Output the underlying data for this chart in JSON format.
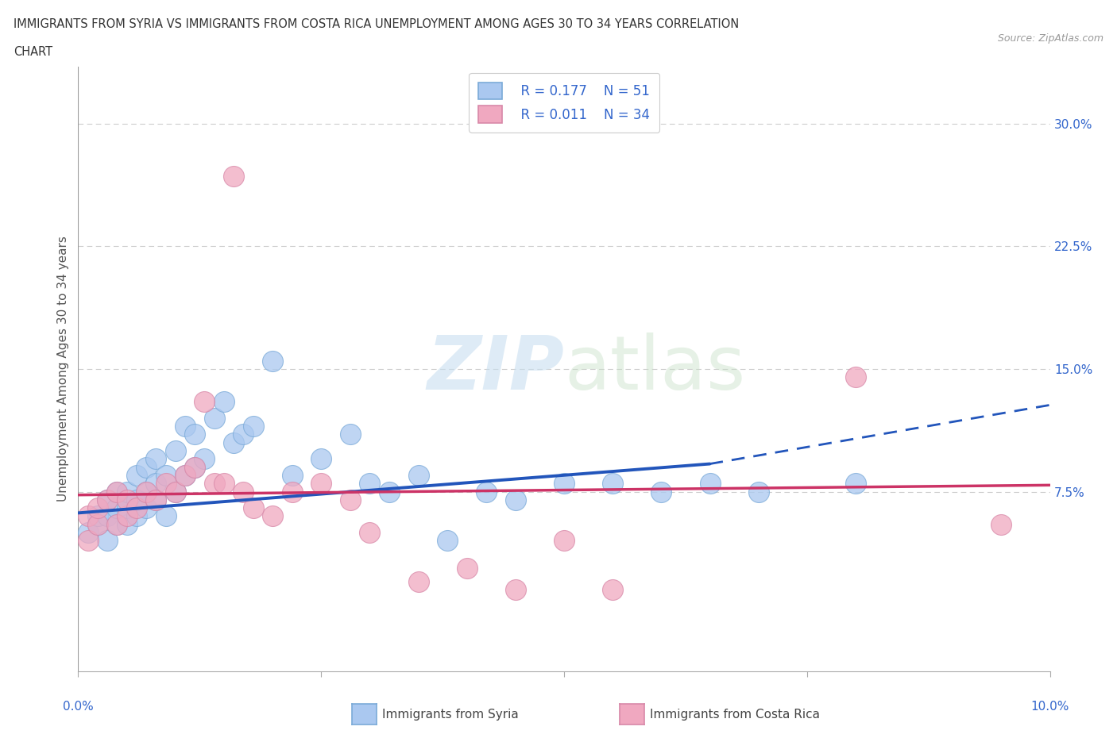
{
  "title_line1": "IMMIGRANTS FROM SYRIA VS IMMIGRANTS FROM COSTA RICA UNEMPLOYMENT AMONG AGES 30 TO 34 YEARS CORRELATION",
  "title_line2": "CHART",
  "source": "Source: ZipAtlas.com",
  "ylabel": "Unemployment Among Ages 30 to 34 years",
  "yticks_right": [
    0.075,
    0.15,
    0.225,
    0.3
  ],
  "ytick_labels_right": [
    "7.5%",
    "15.0%",
    "22.5%",
    "30.0%"
  ],
  "xlim": [
    0.0,
    0.1
  ],
  "ylim": [
    -0.035,
    0.335
  ],
  "watermark_zip": "ZIP",
  "watermark_atlas": "atlas",
  "legend_syria_R": "R = 0.177",
  "legend_syria_N": "N = 51",
  "legend_costa_R": "R = 0.011",
  "legend_costa_N": "N = 34",
  "syria_color": "#aac8f0",
  "costa_color": "#f0a8c0",
  "syria_edge": "#7aaad8",
  "costa_edge": "#d888a8",
  "trend_syria_color": "#2255bb",
  "trend_costa_color": "#cc3366",
  "background": "#ffffff",
  "grid_color": "#cccccc",
  "label_color": "#3366cc",
  "title_color": "#333333",
  "axis_color": "#aaaaaa",
  "syria_x": [
    0.001,
    0.002,
    0.002,
    0.003,
    0.003,
    0.003,
    0.004,
    0.004,
    0.004,
    0.005,
    0.005,
    0.005,
    0.006,
    0.006,
    0.006,
    0.007,
    0.007,
    0.007,
    0.008,
    0.008,
    0.008,
    0.009,
    0.009,
    0.01,
    0.01,
    0.011,
    0.011,
    0.012,
    0.012,
    0.013,
    0.014,
    0.015,
    0.016,
    0.017,
    0.018,
    0.02,
    0.022,
    0.025,
    0.028,
    0.03,
    0.032,
    0.035,
    0.038,
    0.042,
    0.045,
    0.05,
    0.055,
    0.06,
    0.065,
    0.07,
    0.08
  ],
  "syria_y": [
    0.05,
    0.055,
    0.06,
    0.045,
    0.06,
    0.07,
    0.055,
    0.065,
    0.075,
    0.055,
    0.065,
    0.075,
    0.06,
    0.07,
    0.085,
    0.065,
    0.075,
    0.09,
    0.07,
    0.08,
    0.095,
    0.06,
    0.085,
    0.075,
    0.1,
    0.085,
    0.115,
    0.09,
    0.11,
    0.095,
    0.12,
    0.13,
    0.105,
    0.11,
    0.115,
    0.155,
    0.085,
    0.095,
    0.11,
    0.08,
    0.075,
    0.085,
    0.045,
    0.075,
    0.07,
    0.08,
    0.08,
    0.075,
    0.08,
    0.075,
    0.08
  ],
  "costa_x": [
    0.001,
    0.001,
    0.002,
    0.002,
    0.003,
    0.004,
    0.004,
    0.005,
    0.005,
    0.006,
    0.007,
    0.008,
    0.009,
    0.01,
    0.011,
    0.012,
    0.013,
    0.014,
    0.015,
    0.016,
    0.017,
    0.018,
    0.02,
    0.022,
    0.025,
    0.028,
    0.03,
    0.035,
    0.04,
    0.045,
    0.05,
    0.055,
    0.08,
    0.095
  ],
  "costa_y": [
    0.045,
    0.06,
    0.055,
    0.065,
    0.07,
    0.055,
    0.075,
    0.06,
    0.07,
    0.065,
    0.075,
    0.07,
    0.08,
    0.075,
    0.085,
    0.09,
    0.13,
    0.08,
    0.08,
    0.268,
    0.075,
    0.065,
    0.06,
    0.075,
    0.08,
    0.07,
    0.05,
    0.02,
    0.028,
    0.015,
    0.045,
    0.015,
    0.145,
    0.055
  ],
  "trend_syria_x0": 0.0,
  "trend_syria_y0": 0.062,
  "trend_syria_x1": 0.065,
  "trend_syria_y1": 0.092,
  "trend_syria_x2": 0.1,
  "trend_syria_y2": 0.128,
  "trend_costa_x0": 0.0,
  "trend_costa_y0": 0.073,
  "trend_costa_x1": 0.1,
  "trend_costa_y1": 0.079
}
